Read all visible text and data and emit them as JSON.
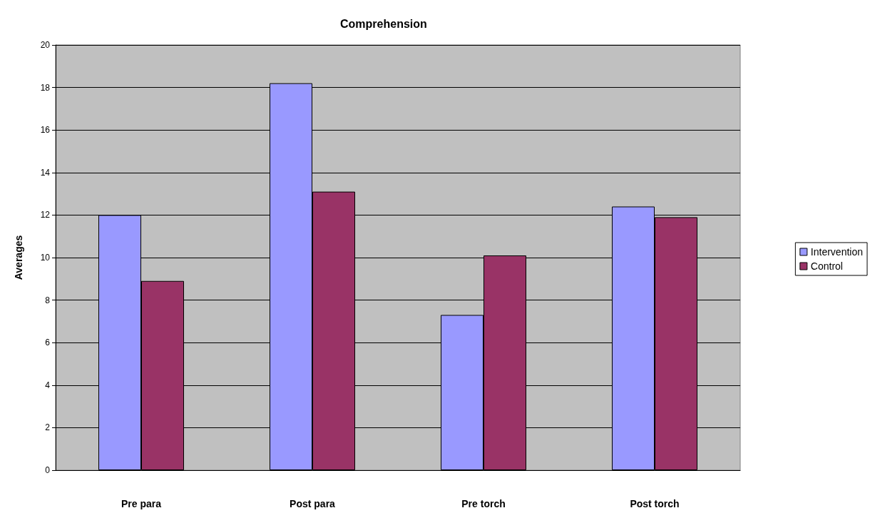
{
  "chart_data": {
    "type": "bar",
    "title": "Comprehension",
    "ylabel": "Averages",
    "categories": [
      "Pre para",
      "Post para",
      "Pre torch",
      "Post torch"
    ],
    "series": [
      {
        "name": "Intervention",
        "color": "#9999ff",
        "values": [
          12.0,
          18.2,
          7.3,
          12.4
        ]
      },
      {
        "name": "Control",
        "color": "#993366",
        "values": [
          8.9,
          13.1,
          10.1,
          11.9
        ]
      }
    ],
    "ylim": [
      0,
      20
    ],
    "yticks": [
      0,
      2,
      4,
      6,
      8,
      10,
      12,
      14,
      16,
      18,
      20
    ],
    "grid": "y",
    "legend": "right"
  }
}
